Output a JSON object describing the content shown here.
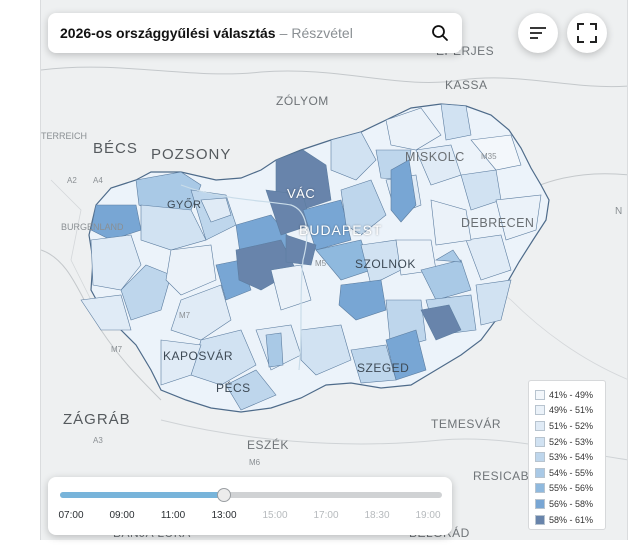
{
  "header": {
    "title": "2026-os országgyűlési választás",
    "separator": "–",
    "subtitle": "Részvétel"
  },
  "controls": {
    "search_icon": "search-icon",
    "sort_icon": "sort-lines-icon",
    "fullscreen_icon": "fullscreen-icon"
  },
  "labels": {
    "eperjes": "EPERJES",
    "kassa": "KASSA",
    "zolyom": "ZÓLYOM",
    "osterreich": "TERREICH",
    "becs": "BÉCS",
    "pozsony": "POZSONY",
    "miskolc": "MISKOLC",
    "vac": "VÁC",
    "gyor": "GYŐR",
    "debrecen": "DEBRECEN",
    "burgenland": "BURGENLAND",
    "budapest": "BUDAPEST",
    "szolnok": "SZOLNOK",
    "kaposvar": "KAPOSVÁR",
    "szeged": "SZEGED",
    "pecs": "PÉCS",
    "zagrab": "ZÁGRÁB",
    "temesvar": "TEMESVÁR",
    "eszek": "ESZÉK",
    "resicabanya": "RESICABÁNYA",
    "banjaluka": "BANJA LUKA",
    "belgrad": "BELGRÁD",
    "road_a2": "A2",
    "road_a4": "A4",
    "road_m5": "M5",
    "road_m7": "M7",
    "road_m7b": "M7",
    "road_a3": "A3",
    "road_m6": "M6",
    "road_ns": "N",
    "road_m35": "M35"
  },
  "legend": {
    "items": [
      {
        "label": "41% - 49%",
        "color": "#f3f7fb"
      },
      {
        "label": "49% - 51%",
        "color": "#ebf2f9"
      },
      {
        "label": "51% - 52%",
        "color": "#e0ebf6"
      },
      {
        "label": "52% - 53%",
        "color": "#d1e2f2"
      },
      {
        "label": "53% - 54%",
        "color": "#bed6ec"
      },
      {
        "label": "54% - 55%",
        "color": "#a9c9e6"
      },
      {
        "label": "55% - 56%",
        "color": "#8fb9de"
      },
      {
        "label": "56% - 58%",
        "color": "#78a6d4"
      },
      {
        "label": "58% - 61%",
        "color": "#6884ab"
      }
    ]
  },
  "timeline": {
    "ticks": [
      "07:00",
      "09:00",
      "11:00",
      "13:00",
      "15:00",
      "17:00",
      "18:30",
      "19:00"
    ],
    "active_count": 4,
    "progress": 0.43
  }
}
